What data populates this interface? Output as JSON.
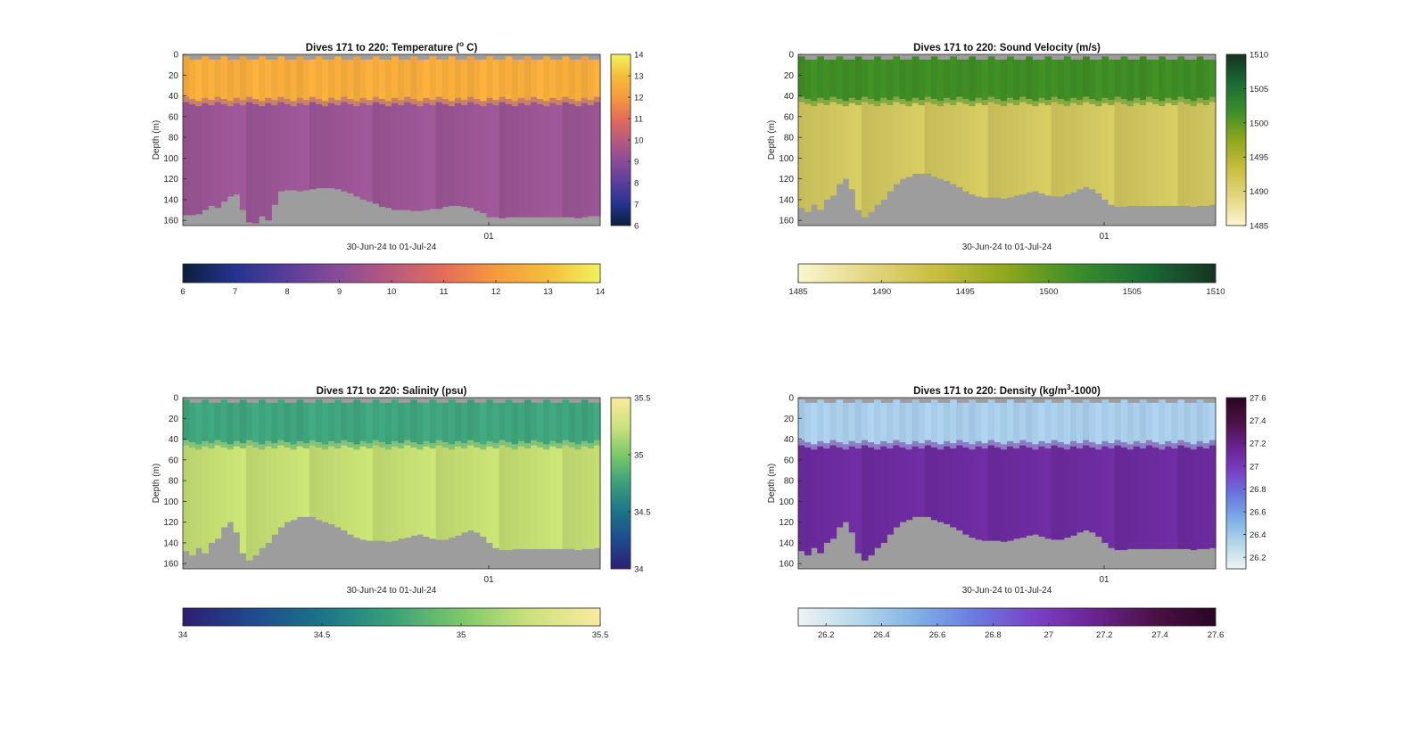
{
  "chart_data": [
    {
      "type": "heatmap",
      "title": "Dives 171 to 220: Temperature (",
      "title_sup": "o",
      "title_tail": " C)",
      "ylabel": "Depth (m)",
      "xlabel": "30-Jun-24 to 01-Jul-24",
      "x_tick_labels": [
        "01"
      ],
      "y_ticks": [
        0,
        20,
        40,
        60,
        80,
        100,
        120,
        140,
        160
      ],
      "ylim": [
        0,
        165
      ],
      "reversed_y": true,
      "colorbar_ticks": [
        6,
        7,
        8,
        9,
        10,
        11,
        12,
        13,
        14
      ],
      "horizontal_colorbar_ticks": [
        6,
        7,
        8,
        9,
        10,
        11,
        12,
        13,
        14
      ],
      "clim": [
        6,
        14
      ],
      "colormap": [
        "#0b1f3a",
        "#24338f",
        "#5a3d9a",
        "#8a4c98",
        "#b85a7e",
        "#e36d5a",
        "#f59a3e",
        "#f5be3b",
        "#f2f25c"
      ],
      "surface_layer": {
        "value": 13.0,
        "bottom_depth": 43,
        "color": "#f5ac3c"
      },
      "deep_layer": {
        "value": 9.5,
        "color": "#9a5595"
      },
      "max_depth_profile": [
        155,
        155,
        154,
        150,
        146,
        148,
        142,
        137,
        135,
        150,
        162,
        163,
        156,
        160,
        145,
        132,
        131,
        131,
        132,
        131,
        130,
        129,
        129,
        129,
        130,
        132,
        134,
        137,
        140,
        142,
        144,
        147,
        148,
        150,
        150,
        150,
        151,
        151,
        150,
        149,
        149,
        147,
        146,
        146,
        147,
        148,
        151,
        153,
        157,
        157,
        158,
        157,
        157,
        157,
        157,
        157,
        157,
        157,
        157,
        157,
        157,
        157,
        158,
        157,
        156,
        156
      ]
    },
    {
      "type": "heatmap",
      "title": "Dives 171 to 220: Sound Velocity (m/s)",
      "ylabel": "Depth (m)",
      "xlabel": "30-Jun-24 to 01-Jul-24",
      "x_tick_labels": [
        "01"
      ],
      "y_ticks": [
        0,
        20,
        40,
        60,
        80,
        100,
        120,
        140,
        160
      ],
      "ylim": [
        0,
        165
      ],
      "reversed_y": true,
      "colorbar_ticks": [
        1485,
        1490,
        1495,
        1500,
        1505,
        1510
      ],
      "horizontal_colorbar_ticks": [
        1485,
        1490,
        1495,
        1500,
        1505,
        1510
      ],
      "clim": [
        1485,
        1510
      ],
      "colormap": [
        "#fbf6cf",
        "#e4d682",
        "#c8bd3f",
        "#8fa71c",
        "#3c8e2a",
        "#1a6b35",
        "#163321"
      ],
      "surface_layer": {
        "value": 1502,
        "bottom_depth": 43,
        "color": "#3f8c25"
      },
      "deep_layer": {
        "value": 1490,
        "color": "#d0c65f"
      },
      "max_depth_profile": [
        148,
        152,
        145,
        150,
        140,
        136,
        125,
        120,
        130,
        150,
        157,
        152,
        145,
        140,
        132,
        125,
        120,
        118,
        115,
        115,
        115,
        118,
        120,
        122,
        125,
        128,
        132,
        135,
        137,
        138,
        138,
        138,
        139,
        138,
        136,
        135,
        133,
        132,
        134,
        136,
        137,
        137,
        135,
        133,
        130,
        128,
        130,
        134,
        140,
        145,
        147,
        147,
        146,
        146,
        146,
        146,
        146,
        146,
        146,
        146,
        146,
        146,
        147,
        146,
        146,
        145
      ]
    },
    {
      "type": "heatmap",
      "title": "Dives 171 to 220: Salinity (psu)",
      "ylabel": "Depth (m)",
      "xlabel": "30-Jun-24 to 01-Jul-24",
      "x_tick_labels": [
        "01"
      ],
      "y_ticks": [
        0,
        20,
        40,
        60,
        80,
        100,
        120,
        140,
        160
      ],
      "ylim": [
        0,
        165
      ],
      "reversed_y": true,
      "colorbar_ticks": [
        34,
        34.5,
        35,
        35.5
      ],
      "horizontal_colorbar_ticks": [
        34,
        34.5,
        35,
        35.5
      ],
      "clim": [
        34,
        35.5
      ],
      "colormap": [
        "#2b1d72",
        "#1f4a8f",
        "#1b7488",
        "#3aa07a",
        "#7cc86a",
        "#cde27d",
        "#faeaa0"
      ],
      "surface_layer": {
        "value": 34.95,
        "bottom_depth": 43,
        "color": "#3fa47c"
      },
      "deep_layer": {
        "value": 35.3,
        "color": "#c4de73"
      },
      "max_depth_profile": [
        148,
        152,
        145,
        150,
        140,
        136,
        125,
        120,
        130,
        150,
        157,
        152,
        145,
        140,
        132,
        125,
        120,
        118,
        115,
        115,
        115,
        118,
        120,
        122,
        125,
        128,
        132,
        135,
        137,
        138,
        138,
        138,
        139,
        138,
        136,
        135,
        133,
        132,
        134,
        136,
        137,
        137,
        135,
        133,
        130,
        128,
        130,
        134,
        140,
        145,
        147,
        147,
        146,
        146,
        146,
        146,
        146,
        146,
        146,
        146,
        146,
        146,
        147,
        146,
        146,
        145
      ]
    },
    {
      "type": "heatmap",
      "title": "Dives 171 to 220: Density (kg/m",
      "title_sup": "3",
      "title_tail": "-1000)",
      "ylabel": "Depth (m)",
      "xlabel": "30-Jun-24 to 01-Jul-24",
      "x_tick_labels": [
        "01"
      ],
      "y_ticks": [
        0,
        20,
        40,
        60,
        80,
        100,
        120,
        140,
        160
      ],
      "ylim": [
        0,
        165
      ],
      "reversed_y": true,
      "colorbar_ticks": [
        26.2,
        26.4,
        26.6,
        26.8,
        27,
        27.2,
        27.4,
        27.6
      ],
      "horizontal_colorbar_ticks": [
        26.2,
        26.4,
        26.6,
        26.8,
        27,
        27.2,
        27.4,
        27.6
      ],
      "colorbar_tick_labels": [
        "26.2",
        "26.4",
        "26.6",
        "26.8",
        "27",
        "27.2",
        "27.4",
        "27.6"
      ],
      "clim": [
        26.1,
        27.6
      ],
      "colormap": [
        "#eef3f3",
        "#b6d8ea",
        "#7fb0e6",
        "#6a78df",
        "#7a3fc6",
        "#6a238f",
        "#4a1144",
        "#2b0524"
      ],
      "surface_layer": {
        "value": 26.4,
        "bottom_depth": 43,
        "color": "#a9cdea"
      },
      "deep_layer": {
        "value": 27.15,
        "color": "#6c2b9e"
      },
      "max_depth_profile": [
        148,
        152,
        145,
        150,
        140,
        136,
        125,
        120,
        130,
        150,
        157,
        152,
        145,
        140,
        132,
        125,
        120,
        118,
        115,
        115,
        115,
        118,
        120,
        122,
        125,
        128,
        132,
        135,
        137,
        138,
        138,
        138,
        139,
        138,
        136,
        135,
        133,
        132,
        134,
        136,
        137,
        137,
        135,
        133,
        130,
        128,
        130,
        134,
        140,
        145,
        147,
        147,
        146,
        146,
        146,
        146,
        146,
        146,
        146,
        146,
        146,
        146,
        147,
        146,
        146,
        145
      ]
    }
  ],
  "colors": {
    "no_data": "#9d9d9d",
    "axis": "#262626",
    "background": "#ffffff"
  }
}
